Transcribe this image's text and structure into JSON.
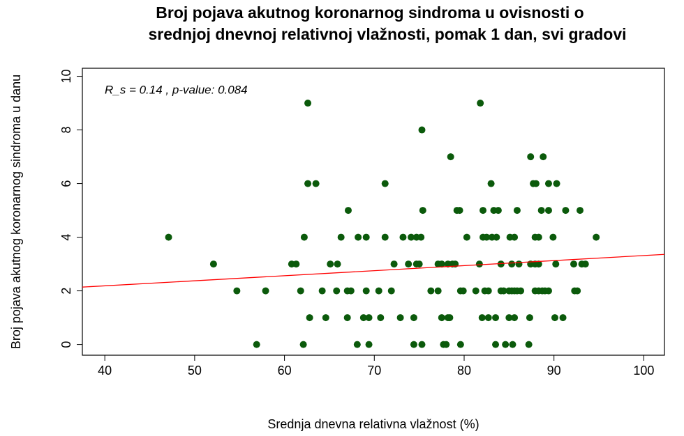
{
  "chart_data": {
    "type": "scatter",
    "title": "Broj pojava akutnog koronarnog sindroma u ovisnosti o",
    "subtitle": "srednjoj dnevnoj relativnoj vlažnosti, pomak 1 dan, svi gradovi",
    "x_label": "Srednja dnevna relativna vlažnost (%)",
    "y_label": "Broj pojava akutnog koronarnog sindroma u danu",
    "annotation": "R_s = 0.14 , p-value: 0.084",
    "xlim": [
      37.5,
      102.3
    ],
    "ylim": [
      -0.4,
      10.3
    ],
    "xticks": [
      40,
      50,
      60,
      70,
      80,
      90,
      100
    ],
    "yticks": [
      0,
      2,
      4,
      6,
      8,
      10
    ],
    "color": "#0b5a0b",
    "trend_line": {
      "x": [
        37.5,
        102.3
      ],
      "y": [
        2.14,
        3.36
      ],
      "color": "#ff0000"
    },
    "x": [
      56.9,
      62.1,
      68.1,
      69.4,
      74.4,
      75.3,
      77.7,
      78.0,
      79.6,
      83.5,
      84.6,
      85.4,
      87.2,
      62.8,
      64.6,
      67.0,
      68.8,
      69.4,
      70.7,
      72.9,
      74.4,
      77.5,
      78.2,
      78.4,
      82.0,
      82.7,
      83.5,
      85.0,
      85.6,
      87.3,
      90.1,
      91.0,
      54.7,
      57.9,
      61.8,
      64.2,
      65.8,
      67.0,
      67.4,
      69.1,
      70.5,
      71.9,
      76.3,
      77.1,
      79.6,
      79.9,
      81.3,
      82.3,
      82.7,
      84.1,
      84.4,
      85.0,
      85.3,
      85.6,
      85.9,
      86.3,
      87.9,
      88.3,
      88.7,
      89.0,
      89.4,
      92.3,
      92.6,
      52.1,
      60.8,
      61.3,
      65.1,
      65.9,
      72.2,
      73.8,
      74.7,
      75.0,
      77.1,
      77.5,
      78.2,
      78.7,
      79.0,
      81.7,
      84.1,
      85.3,
      86.1,
      87.4,
      87.9,
      88.3,
      90.2,
      92.2,
      93.1,
      93.5,
      47.1,
      62.2,
      66.3,
      68.2,
      69.1,
      71.2,
      73.2,
      74.1,
      74.7,
      75.2,
      80.3,
      82.1,
      82.5,
      83.1,
      83.6,
      85.1,
      85.6,
      87.9,
      88.3,
      89.9,
      94.7,
      67.1,
      75.4,
      79.2,
      79.5,
      82.1,
      83.3,
      83.8,
      85.9,
      88.6,
      89.4,
      91.3,
      92.9,
      62.6,
      63.5,
      71.2,
      83.0,
      87.7,
      88.0,
      89.4,
      90.3,
      78.5,
      87.4,
      88.8,
      75.3,
      62.6,
      81.8
    ],
    "y": [
      0,
      0,
      0,
      0,
      0,
      0,
      0,
      0,
      0,
      0,
      0,
      0,
      0,
      1,
      1,
      1,
      1,
      1,
      1,
      1,
      1,
      1,
      1,
      1,
      1,
      1,
      1,
      1,
      1,
      1,
      1,
      1,
      2,
      2,
      2,
      2,
      2,
      2,
      2,
      2,
      2,
      2,
      2,
      2,
      2,
      2,
      2,
      2,
      2,
      2,
      2,
      2,
      2,
      2,
      2,
      2,
      2,
      2,
      2,
      2,
      2,
      2,
      2,
      3,
      3,
      3,
      3,
      3,
      3,
      3,
      3,
      3,
      3,
      3,
      3,
      3,
      3,
      3,
      3,
      3,
      3,
      3,
      3,
      3,
      3,
      3,
      3,
      3,
      4,
      4,
      4,
      4,
      4,
      4,
      4,
      4,
      4,
      4,
      4,
      4,
      4,
      4,
      4,
      4,
      4,
      4,
      4,
      4,
      4,
      5,
      5,
      5,
      5,
      5,
      5,
      5,
      5,
      5,
      5,
      5,
      5,
      6,
      6,
      6,
      6,
      6,
      6,
      6,
      6,
      7,
      7,
      7,
      8,
      9,
      9
    ]
  }
}
